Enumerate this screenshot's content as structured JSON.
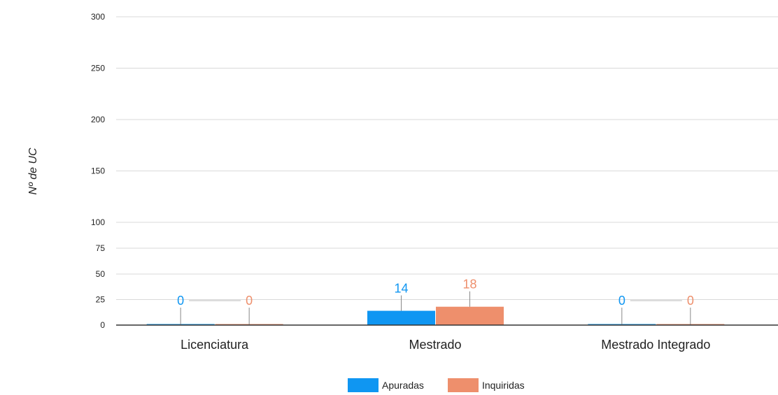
{
  "chart_data": {
    "type": "bar",
    "ylabel": "Nº de UC",
    "xlabel": "",
    "title": "",
    "categories": [
      "Licenciatura",
      "Mestrado",
      "Mestrado Integrado"
    ],
    "series": [
      {
        "name": "Apuradas",
        "values": [
          0,
          14,
          0
        ],
        "color": "#0f96f2"
      },
      {
        "name": "Inquiridas",
        "values": [
          0,
          18,
          0
        ],
        "color": "#ee8f6c"
      }
    ],
    "yticks": [
      0,
      25,
      50,
      75,
      100,
      150,
      200,
      250,
      300
    ],
    "ylim": [
      0,
      300
    ],
    "y_scale_note": "axis is non-linear: 0–100 compressed scale with 25-unit steps, 100–300 with 50-unit steps",
    "grid": true,
    "legend_position": "bottom"
  }
}
